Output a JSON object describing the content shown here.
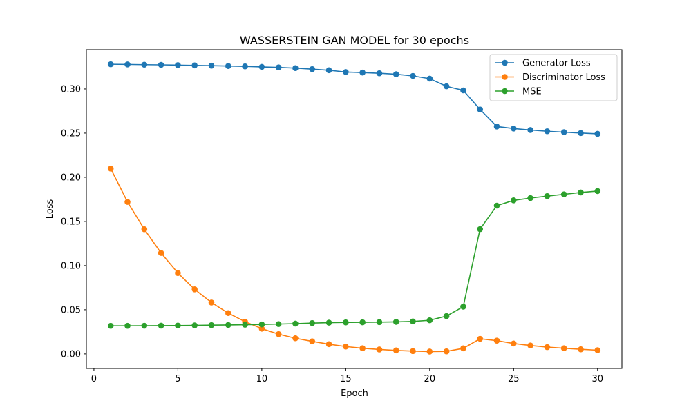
{
  "chart_data": {
    "type": "line",
    "title": "WASSERSTEIN GAN MODEL  for 30 epochs",
    "xlabel": "Epoch",
    "ylabel": "Loss",
    "xlim": [
      -0.45,
      31.45
    ],
    "ylim": [
      -0.0165,
      0.3445
    ],
    "xticks": [
      0,
      5,
      10,
      15,
      20,
      25,
      30
    ],
    "xtick_labels": [
      "0",
      "5",
      "10",
      "15",
      "20",
      "25",
      "30"
    ],
    "yticks": [
      0.0,
      0.05,
      0.1,
      0.15,
      0.2,
      0.25,
      0.3
    ],
    "ytick_labels": [
      "0.00",
      "0.05",
      "0.10",
      "0.15",
      "0.20",
      "0.25",
      "0.30"
    ],
    "grid": false,
    "legend_position": "top-right",
    "x": [
      1,
      2,
      3,
      4,
      5,
      6,
      7,
      8,
      9,
      10,
      11,
      12,
      13,
      14,
      15,
      16,
      17,
      18,
      19,
      20,
      21,
      22,
      23,
      24,
      25,
      26,
      27,
      28,
      29,
      30
    ],
    "series": [
      {
        "name": "Generator Loss",
        "color": "#1f77b4",
        "values": [
          0.328,
          0.3278,
          0.3275,
          0.3273,
          0.327,
          0.3267,
          0.3264,
          0.326,
          0.3256,
          0.325,
          0.3244,
          0.3236,
          0.3225,
          0.3212,
          0.3192,
          0.3186,
          0.3178,
          0.3167,
          0.3148,
          0.3117,
          0.303,
          0.2984,
          0.2768,
          0.2575,
          0.2552,
          0.2535,
          0.2521,
          0.2511,
          0.2501,
          0.2492
        ]
      },
      {
        "name": "Discriminator Loss",
        "color": "#ff7f0e",
        "values": [
          0.2098,
          0.1721,
          0.1412,
          0.1143,
          0.0916,
          0.0731,
          0.0582,
          0.0462,
          0.0365,
          0.0286,
          0.0224,
          0.0177,
          0.0142,
          0.011,
          0.0083,
          0.0064,
          0.005,
          0.004,
          0.0032,
          0.0027,
          0.0029,
          0.0063,
          0.0171,
          0.015,
          0.0118,
          0.0095,
          0.0077,
          0.0064,
          0.0052,
          0.0042
        ]
      },
      {
        "name": "MSE",
        "color": "#2ca02c",
        "values": [
          0.0318,
          0.0318,
          0.0319,
          0.032,
          0.0321,
          0.0323,
          0.0326,
          0.0328,
          0.0331,
          0.0334,
          0.0338,
          0.0343,
          0.0349,
          0.0354,
          0.0357,
          0.0358,
          0.036,
          0.0363,
          0.0368,
          0.0381,
          0.0428,
          0.0535,
          0.1413,
          0.1679,
          0.1739,
          0.1765,
          0.1787,
          0.1807,
          0.1828,
          0.1844
        ]
      }
    ]
  }
}
